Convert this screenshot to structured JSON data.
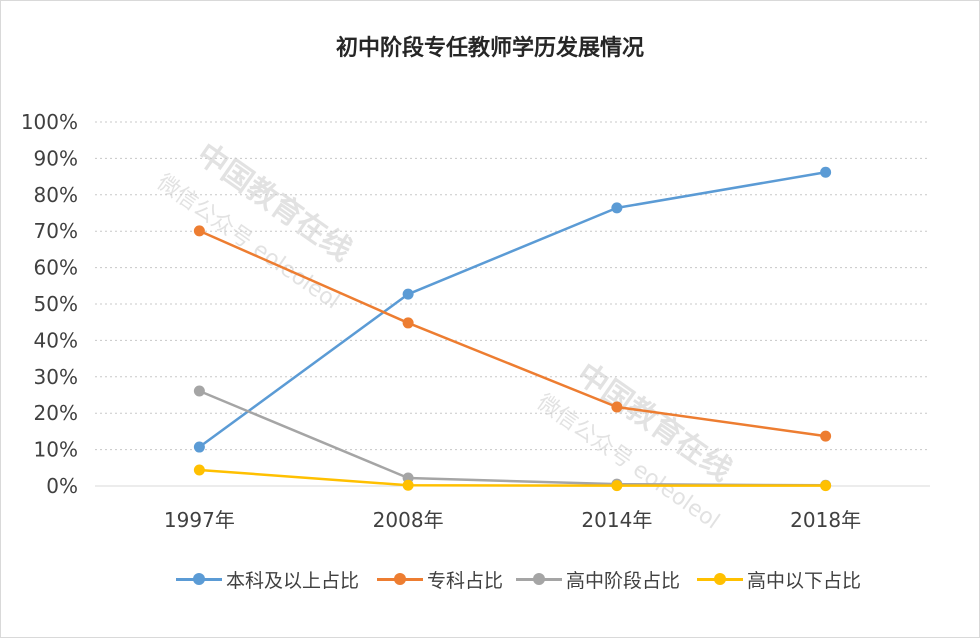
{
  "watermark": {
    "line1": "中国教育在线",
    "line2": "微信公众号 eoleoleol"
  },
  "chart_data": {
    "type": "line",
    "title": "初中阶段专任教师学历发展情况",
    "categories": [
      "1997年",
      "2008年",
      "2014年",
      "2018年"
    ],
    "ylim": [
      0,
      100
    ],
    "yticks": [
      "0%",
      "10%",
      "20%",
      "30%",
      "40%",
      "50%",
      "60%",
      "70%",
      "80%",
      "90%",
      "100%"
    ],
    "grid": true,
    "legend_position": "bottom",
    "series": [
      {
        "name": "本科及以上占比",
        "color": "#5b9bd5",
        "values": [
          10.7,
          52.7,
          76.4,
          86.2
        ]
      },
      {
        "name": "专科占比",
        "color": "#ed7d31",
        "values": [
          70.1,
          44.8,
          21.7,
          13.7
        ]
      },
      {
        "name": "高中阶段占比",
        "color": "#a5a5a5",
        "values": [
          26.1,
          2.2,
          0.5,
          0.2
        ]
      },
      {
        "name": "高中以下占比",
        "color": "#ffc000",
        "values": [
          4.4,
          0.2,
          0.1,
          0.1
        ]
      }
    ]
  }
}
